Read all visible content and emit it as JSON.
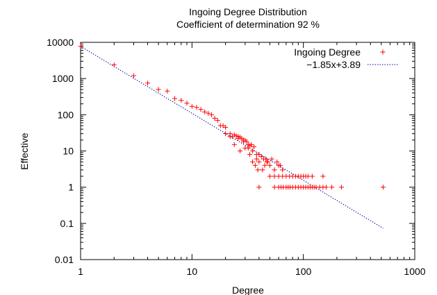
{
  "chart_data": {
    "type": "scatter",
    "title": "Ingoing Degree Distribution",
    "subtitle": "Coefficient of determination 92 %",
    "xlabel": "Degree",
    "ylabel": "Effective",
    "x_scale": "log",
    "y_scale": "log",
    "xlim": [
      1,
      1000
    ],
    "ylim": [
      0.01,
      10000
    ],
    "x_ticks": [
      "1",
      "10",
      "100",
      "1000"
    ],
    "y_ticks": [
      "0.01",
      "0.1",
      "1",
      "10",
      "100",
      "1000",
      "10000"
    ],
    "grid": false,
    "legend_position": "top-right",
    "series": [
      {
        "name": "Ingoing Degree",
        "kind": "points",
        "color": "#ff0000",
        "marker": "plus",
        "points": [
          [
            1,
            7700
          ],
          [
            2,
            2400
          ],
          [
            3,
            1200
          ],
          [
            4,
            750
          ],
          [
            5,
            500
          ],
          [
            6,
            450
          ],
          [
            7,
            280
          ],
          [
            8,
            250
          ],
          [
            9,
            210
          ],
          [
            10,
            170
          ],
          [
            11,
            160
          ],
          [
            12,
            140
          ],
          [
            13,
            120
          ],
          [
            14,
            110
          ],
          [
            15,
            100
          ],
          [
            16,
            80
          ],
          [
            17,
            70
          ],
          [
            18,
            50
          ],
          [
            19,
            50
          ],
          [
            20,
            45
          ],
          [
            22,
            30
          ],
          [
            23,
            25
          ],
          [
            24,
            28
          ],
          [
            25,
            26
          ],
          [
            26,
            25
          ],
          [
            27,
            24
          ],
          [
            28,
            22
          ],
          [
            29,
            20
          ],
          [
            30,
            20
          ],
          [
            31,
            18
          ],
          [
            32,
            15
          ],
          [
            33,
            14
          ],
          [
            34,
            15
          ],
          [
            36,
            13
          ],
          [
            38,
            8
          ],
          [
            40,
            8
          ],
          [
            42,
            7
          ],
          [
            44,
            6
          ],
          [
            46,
            6
          ],
          [
            48,
            5
          ],
          [
            20,
            30
          ],
          [
            22,
            25
          ],
          [
            26,
            22
          ],
          [
            29,
            18
          ],
          [
            32,
            12
          ],
          [
            35,
            10
          ],
          [
            38,
            6
          ],
          [
            40,
            5
          ],
          [
            45,
            4
          ],
          [
            50,
            4
          ],
          [
            55,
            3
          ],
          [
            60,
            4
          ],
          [
            65,
            3
          ],
          [
            24,
            15
          ],
          [
            27,
            10
          ],
          [
            30,
            12
          ],
          [
            33,
            8
          ],
          [
            35,
            5
          ],
          [
            37,
            4
          ],
          [
            39,
            3
          ],
          [
            43,
            3
          ],
          [
            47,
            5
          ],
          [
            52,
            6
          ],
          [
            58,
            5
          ],
          [
            62,
            4
          ],
          [
            50,
            2
          ],
          [
            55,
            2
          ],
          [
            60,
            2
          ],
          [
            65,
            2
          ],
          [
            70,
            2
          ],
          [
            75,
            2
          ],
          [
            80,
            2
          ],
          [
            85,
            2
          ],
          [
            90,
            2
          ],
          [
            95,
            2
          ],
          [
            100,
            2
          ],
          [
            105,
            2
          ],
          [
            110,
            2
          ],
          [
            120,
            2
          ],
          [
            150,
            2
          ],
          [
            40,
            1
          ],
          [
            55,
            1
          ],
          [
            60,
            1
          ],
          [
            63,
            1
          ],
          [
            66,
            1
          ],
          [
            70,
            1
          ],
          [
            73,
            1
          ],
          [
            76,
            1
          ],
          [
            80,
            1
          ],
          [
            85,
            1
          ],
          [
            90,
            1
          ],
          [
            95,
            1
          ],
          [
            100,
            1
          ],
          [
            105,
            1
          ],
          [
            110,
            1
          ],
          [
            115,
            1
          ],
          [
            120,
            1
          ],
          [
            125,
            1
          ],
          [
            130,
            1
          ],
          [
            140,
            1
          ],
          [
            150,
            1
          ],
          [
            160,
            1
          ],
          [
            180,
            1
          ],
          [
            220,
            1
          ],
          [
            520,
            1
          ]
        ]
      },
      {
        "name": "−1.85x+3.89",
        "kind": "line",
        "color": "#0000a0",
        "dash": "dotted",
        "slope": -1.85,
        "intercept": 3.89,
        "x_range": [
          1,
          520
        ]
      }
    ]
  }
}
